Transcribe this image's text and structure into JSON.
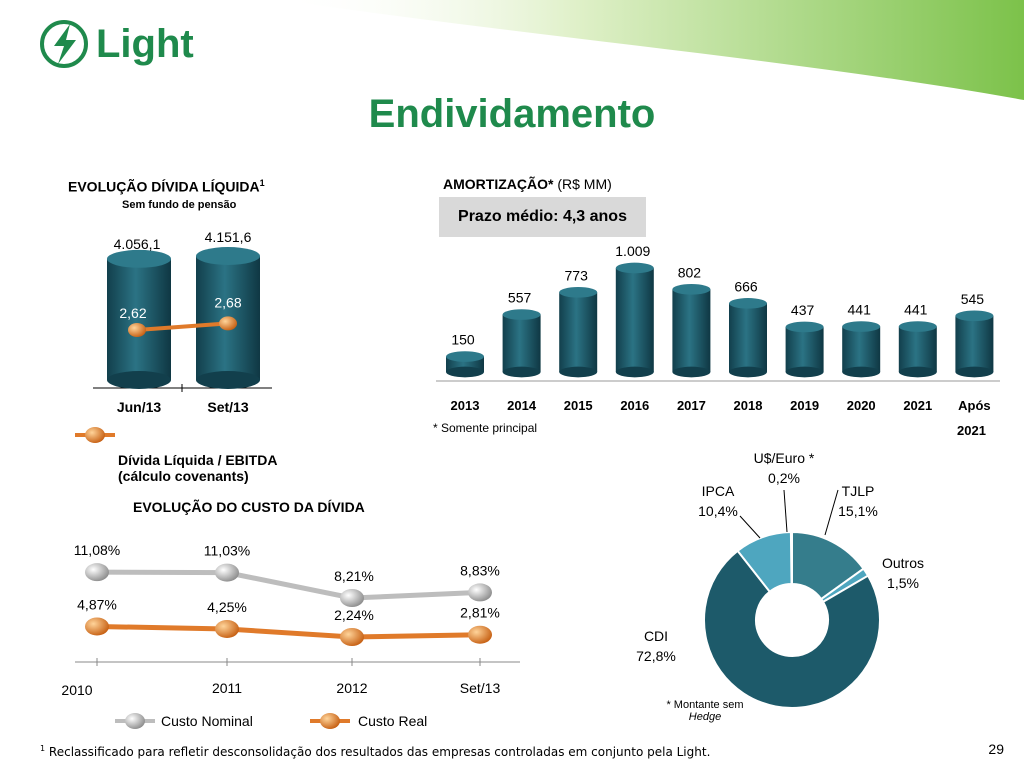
{
  "header": {
    "logo_text": "Light",
    "title": "Endividamento"
  },
  "debt_chart": {
    "heading": "EVOLUÇÃO DÍVIDA LÍQUIDA",
    "heading_sup": "1",
    "subheading": "Sem fundo de pensão",
    "legend": "Dívida Líquida / EBITDA",
    "legend2": "(cálculo covenants)"
  },
  "amort": {
    "heading": "AMORTIZAÇÃO*",
    "unit": " (R$ MM)",
    "prazo": "Prazo médio: 4,3 anos",
    "note": "* Somente principal",
    "last_label_line2": "2021"
  },
  "cost": {
    "heading": "EVOLUÇÃO DO CUSTO DA DÍVIDA",
    "legend_nominal": "Custo Nominal",
    "legend_real": "Custo Real"
  },
  "pie": {
    "note_line1": "* Montante sem",
    "note_line2": "Hedge"
  },
  "footer": {
    "sup": "1",
    "text": " Reclassificado para refletir desconsolidação dos resultados das empresas controladas em conjunto pela Light.",
    "page": "29"
  },
  "colors": {
    "brand_green": "#1f8a4c",
    "teal_dark": "#1d5a6a",
    "orange": "#e07a2a",
    "gray": "#bdbdbd"
  },
  "chart_data": [
    {
      "type": "bar",
      "categories": [
        "Jun/13",
        "Set/13"
      ],
      "series": [
        {
          "name": "Dívida Líquida",
          "values": [
            4056.1,
            4151.6
          ],
          "labels": [
            "4.056,1",
            "4.151,6"
          ]
        },
        {
          "name": "Dívida Líquida / EBITDA",
          "type": "line",
          "values": [
            2.62,
            2.68
          ],
          "labels": [
            "2,62",
            "2,68"
          ]
        }
      ],
      "title": "EVOLUÇÃO DÍVIDA LÍQUIDA"
    },
    {
      "type": "bar",
      "categories": [
        "2013",
        "2014",
        "2015",
        "2016",
        "2017",
        "2018",
        "2019",
        "2020",
        "2021",
        "Após"
      ],
      "values": [
        150,
        557,
        773,
        1009,
        802,
        666,
        437,
        441,
        441,
        545
      ],
      "labels": [
        "150",
        "557",
        "773",
        "1.009",
        "802",
        "666",
        "437",
        "441",
        "441",
        "545"
      ],
      "title": "AMORTIZAÇÃO* (R$ MM)"
    },
    {
      "type": "line",
      "categories": [
        "2010",
        "2011",
        "2012",
        "Set/13"
      ],
      "series": [
        {
          "name": "Custo Nominal",
          "values": [
            11.08,
            11.03,
            8.21,
            8.83
          ],
          "labels": [
            "11,08%",
            "11,03%",
            "8,21%",
            "8,83%"
          ]
        },
        {
          "name": "Custo Real",
          "values": [
            4.87,
            4.25,
            2.24,
            2.81
          ],
          "labels": [
            "4,87%",
            "4,25%",
            "2,24%",
            "2,81%"
          ]
        }
      ],
      "title": "EVOLUÇÃO DO CUSTO DA DÍVIDA"
    },
    {
      "type": "pie",
      "slices": [
        {
          "name": "U$/Euro *",
          "value": 0.2,
          "label": "0,2%"
        },
        {
          "name": "TJLP",
          "value": 15.1,
          "label": "15,1%"
        },
        {
          "name": "Outros",
          "value": 1.5,
          "label": "1,5%"
        },
        {
          "name": "CDI",
          "value": 72.8,
          "label": "72,8%"
        },
        {
          "name": "IPCA",
          "value": 10.4,
          "label": "10,4%"
        }
      ]
    }
  ]
}
